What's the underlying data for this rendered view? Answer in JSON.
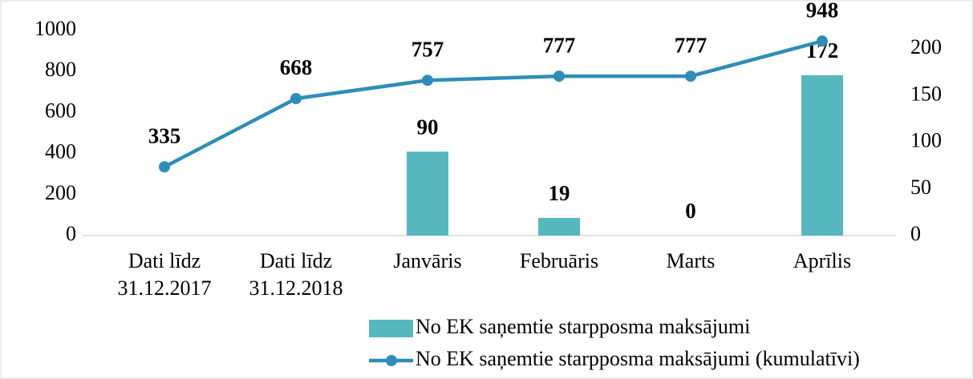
{
  "chart_data": {
    "type": "bar-line",
    "categories": [
      "Dati līdz 31.12.2017",
      "Dati līdz 31.12.2018",
      "Janvāris",
      "Februāris",
      "Marts",
      "Aprīlis"
    ],
    "series": [
      {
        "name": "No EK saņemtie starpposma maksājumi",
        "type": "bar",
        "axis": "y2",
        "color": "#57b7bf",
        "label_color": "#1f4f5c",
        "values": [
          null,
          null,
          90,
          19,
          0,
          172
        ]
      },
      {
        "name": "No EK saņemtie starpposma maksājumi (kumulatīvi)",
        "type": "line",
        "color": "#2e8db8",
        "label_color": "#6b8fa3",
        "values": [
          335,
          668,
          757,
          777,
          777,
          948
        ]
      }
    ],
    "ylim": [
      0,
      1000
    ],
    "yticks": [
      0,
      200,
      400,
      600,
      800,
      1000
    ],
    "y2lim": [
      0,
      220
    ],
    "y2ticks": [
      0,
      50,
      100,
      150,
      200
    ],
    "grid": false,
    "legend": "bottom"
  }
}
